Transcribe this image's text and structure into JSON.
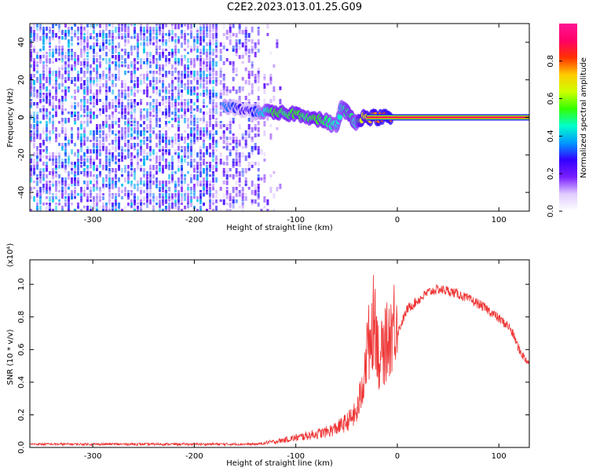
{
  "title": "C2E2.2023.013.01.25.G09",
  "chart_data": [
    {
      "type": "heatmap",
      "xlabel": "Height of straight line (km)",
      "ylabel": "Frequency (Hz)",
      "xlim": [
        -362,
        130
      ],
      "ylim": [
        -50,
        50
      ],
      "x_ticks": [
        -300,
        -200,
        -100,
        0,
        100
      ],
      "y_ticks": [
        -40,
        -20,
        0,
        20,
        40
      ],
      "colorbar": {
        "label": "Normalized spectral amplitude",
        "range": [
          0,
          1
        ],
        "ticks": [
          "0.0",
          "0.2",
          "0.4",
          "0.6",
          "0.8"
        ],
        "tick_values": [
          0,
          0.2,
          0.4,
          0.6,
          0.8
        ],
        "colormap": [
          "#ffffff",
          "#e0ccff",
          "#7a1fff",
          "#3300ff",
          "#0099ff",
          "#00ffcc",
          "#33ff00",
          "#ccff00",
          "#ffcc00",
          "#ff3300",
          "#ff0066",
          "#ff1493"
        ]
      },
      "noise_regions": [
        {
          "x_range": [
            -362,
            -175
          ],
          "density": 0.62,
          "amplitude": 0.6
        },
        {
          "x_range": [
            -175,
            -135
          ],
          "density": 0.38,
          "amplitude": 0.45
        },
        {
          "x_range": [
            -135,
            -112
          ],
          "density": 0.1,
          "amplitude": 0.25
        }
      ],
      "signal_track": [
        {
          "x": -170,
          "y": 6,
          "a": 0.35
        },
        {
          "x": -160,
          "y": 5,
          "a": 0.3
        },
        {
          "x": -150,
          "y": 4,
          "a": 0.25
        },
        {
          "x": -140,
          "y": 3,
          "a": 0.3
        },
        {
          "x": -130,
          "y": 3,
          "a": 0.45
        },
        {
          "x": -120,
          "y": 2,
          "a": 0.55
        },
        {
          "x": -110,
          "y": 2,
          "a": 0.5
        },
        {
          "x": -100,
          "y": 2,
          "a": 0.55
        },
        {
          "x": -90,
          "y": 1,
          "a": 0.5
        },
        {
          "x": -80,
          "y": -1,
          "a": 0.55
        },
        {
          "x": -70,
          "y": -2,
          "a": 0.5
        },
        {
          "x": -60,
          "y": -5,
          "a": 0.45
        },
        {
          "x": -55,
          "y": 5,
          "a": 0.45
        },
        {
          "x": -50,
          "y": 3,
          "a": 0.5
        },
        {
          "x": -45,
          "y": 0,
          "a": 0.5
        },
        {
          "x": -40,
          "y": -3,
          "a": 0.45
        },
        {
          "x": -35,
          "y": 0,
          "a": 0.65
        },
        {
          "x": -25,
          "y": 0,
          "a": 0.75
        },
        {
          "x": -15,
          "y": 0,
          "a": 0.8
        },
        {
          "x": -5,
          "y": 0,
          "a": 0.8
        }
      ],
      "carrier_band": {
        "x_range": [
          -30,
          130
        ],
        "y": 0
      }
    },
    {
      "type": "line",
      "xlabel": "Height of straight line (km)",
      "ylabel": "SNR (10 * v/v)",
      "y_multiplier": "(x10⁴)",
      "xlim": [
        -362,
        130
      ],
      "ylim": [
        0,
        1.15
      ],
      "x_ticks": [
        -300,
        -200,
        -100,
        0,
        100
      ],
      "y_ticks": [
        0.0,
        0.2,
        0.4,
        0.6,
        0.8,
        1.0
      ],
      "y_tick_labels": [
        "0.0",
        "0.2",
        "0.4",
        "0.6",
        "0.8",
        "1.0"
      ],
      "series": [
        {
          "color": "#ee3333",
          "x": [
            -362,
            -300,
            -200,
            -140,
            -120,
            -110,
            -100,
            -90,
            -80,
            -70,
            -60,
            -50,
            -40,
            -35,
            -30,
            -25,
            -22,
            -18,
            -10,
            0,
            10,
            20,
            30,
            40,
            50,
            60,
            70,
            80,
            90,
            100,
            110,
            115,
            120,
            125,
            130
          ],
          "y": [
            0.02,
            0.02,
            0.02,
            0.02,
            0.03,
            0.04,
            0.05,
            0.06,
            0.07,
            0.08,
            0.1,
            0.13,
            0.18,
            0.3,
            0.5,
            0.62,
            0.7,
            0.45,
            0.55,
            0.7,
            0.85,
            0.9,
            0.95,
            0.97,
            0.96,
            0.94,
            0.91,
            0.88,
            0.84,
            0.79,
            0.74,
            0.68,
            0.6,
            0.55,
            0.52
          ]
        }
      ]
    }
  ]
}
